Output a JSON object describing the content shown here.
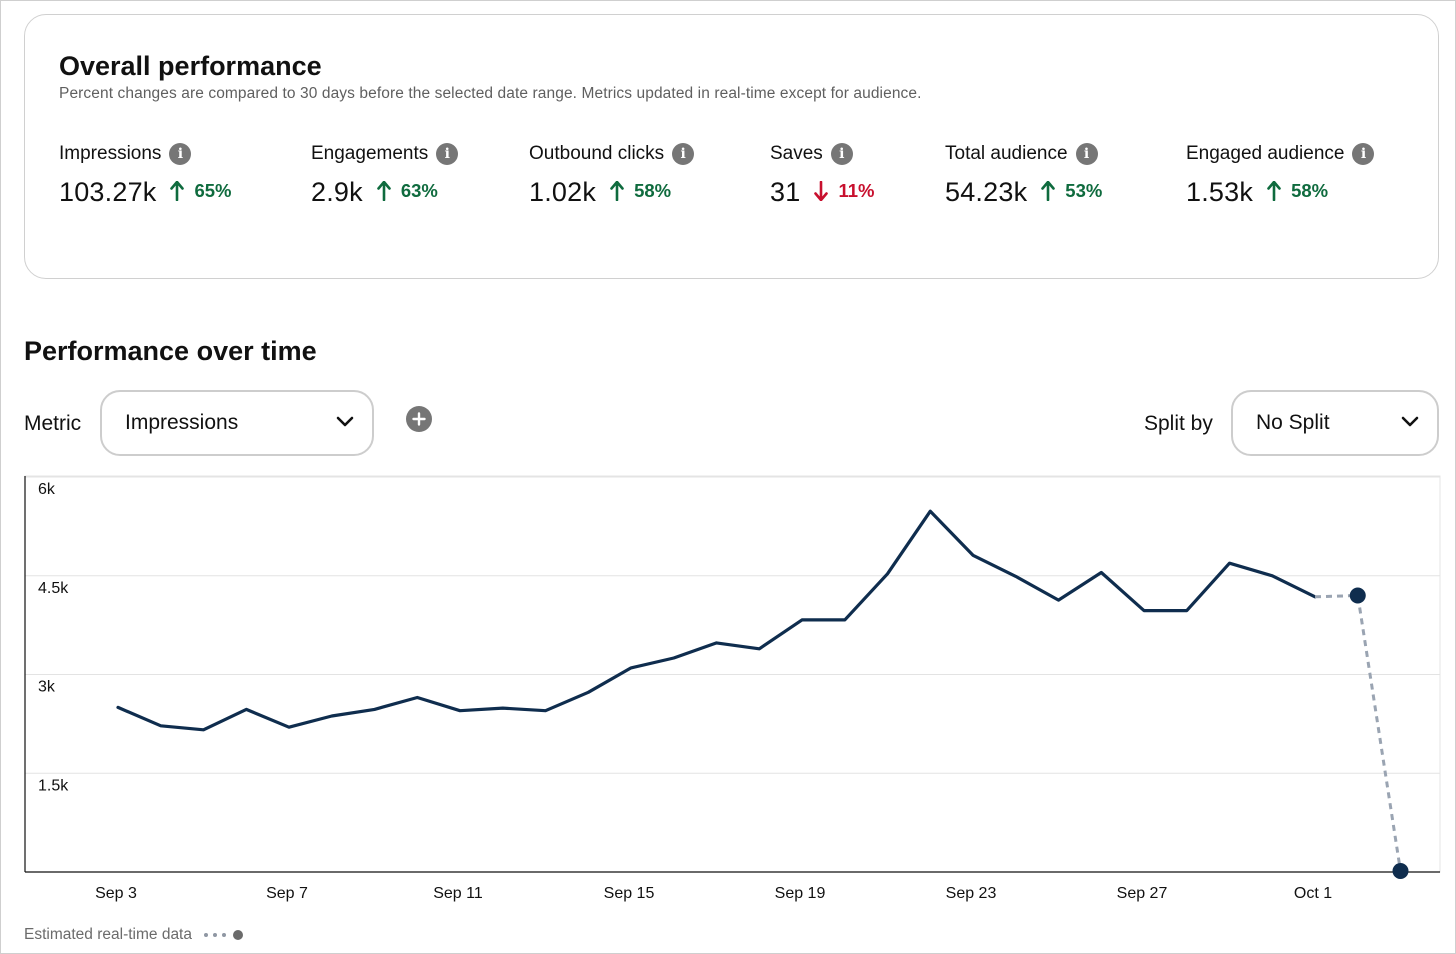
{
  "overall": {
    "title": "Overall performance",
    "subtitle": "Percent changes are compared to 30 days before the selected date range. Metrics updated in real-time except for audience.",
    "metrics": [
      {
        "label": "Impressions",
        "value": "103.27k",
        "change": "65%",
        "direction": "up"
      },
      {
        "label": "Engagements",
        "value": "2.9k",
        "change": "63%",
        "direction": "up"
      },
      {
        "label": "Outbound clicks",
        "value": "1.02k",
        "change": "58%",
        "direction": "up"
      },
      {
        "label": "Saves",
        "value": "31",
        "change": "11%",
        "direction": "down"
      },
      {
        "label": "Total audience",
        "value": "54.23k",
        "change": "53%",
        "direction": "up"
      },
      {
        "label": "Engaged audience",
        "value": "1.53k",
        "change": "58%",
        "direction": "up"
      }
    ],
    "info_icon": "info-icon"
  },
  "performance": {
    "title": "Performance over time",
    "metric_label": "Metric",
    "metric_value": "Impressions",
    "split_label": "Split by",
    "split_value": "No Split",
    "legend_text": "Estimated real-time data"
  },
  "colors": {
    "up": "#0f6b3e",
    "down": "#c8102e",
    "line": "#0f2d4e",
    "estimated": "#9aa4b2"
  },
  "chart_data": {
    "type": "line",
    "x_ticks": [
      "Sep 3",
      "Sep 7",
      "Sep 11",
      "Sep 15",
      "Sep 19",
      "Sep 23",
      "Sep 27",
      "Oct 1"
    ],
    "y_ticks": [
      "1.5k",
      "3k",
      "4.5k",
      "6k"
    ],
    "ylim": [
      0,
      6000
    ],
    "x": [
      "Sep 3",
      "Sep 4",
      "Sep 5",
      "Sep 6",
      "Sep 7",
      "Sep 8",
      "Sep 9",
      "Sep 10",
      "Sep 11",
      "Sep 12",
      "Sep 13",
      "Sep 14",
      "Sep 15",
      "Sep 16",
      "Sep 17",
      "Sep 18",
      "Sep 19",
      "Sep 20",
      "Sep 21",
      "Sep 22",
      "Sep 23",
      "Sep 24",
      "Sep 25",
      "Sep 26",
      "Sep 27",
      "Sep 28",
      "Sep 29",
      "Sep 30",
      "Oct 1",
      "Oct 2",
      "Oct 3"
    ],
    "series": [
      {
        "values": [
          2500,
          2220,
          2160,
          2470,
          2200,
          2370,
          2470,
          2650,
          2450,
          2490,
          2450,
          2730,
          3100,
          3250,
          3480,
          3390,
          3830,
          3830,
          4530,
          5480,
          4810,
          4490,
          4130,
          4550,
          3970,
          3970,
          4690,
          4500,
          4180,
          null,
          null
        ]
      },
      {
        "style": "estimated",
        "values": [
          null,
          null,
          null,
          null,
          null,
          null,
          null,
          null,
          null,
          null,
          null,
          null,
          null,
          null,
          null,
          null,
          null,
          null,
          null,
          null,
          null,
          null,
          null,
          null,
          null,
          null,
          null,
          null,
          4180,
          4200,
          0
        ]
      }
    ],
    "grid": true
  }
}
